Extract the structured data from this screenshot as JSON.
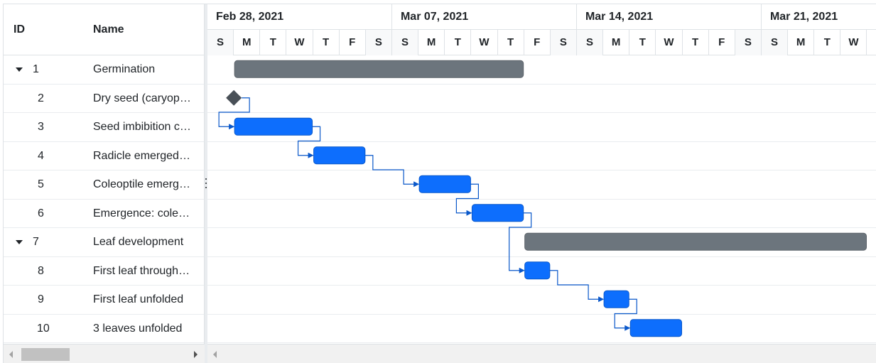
{
  "grid": {
    "columns": {
      "id": "ID",
      "name": "Name"
    },
    "rows": [
      {
        "id": "1",
        "name": "Germination",
        "parent": true
      },
      {
        "id": "2",
        "name": "Dry seed (caryopsis)",
        "parent": false
      },
      {
        "id": "3",
        "name": "Seed imbibition complete",
        "parent": false
      },
      {
        "id": "4",
        "name": "Radicle emerged from caryopsis",
        "parent": false
      },
      {
        "id": "5",
        "name": "Coleoptile emerged from caryopsis",
        "parent": false
      },
      {
        "id": "6",
        "name": "Emergence: coleoptile penetrates soil surface",
        "parent": false
      },
      {
        "id": "7",
        "name": "Leaf development",
        "parent": true
      },
      {
        "id": "8",
        "name": "First leaf through coleoptile",
        "parent": false
      },
      {
        "id": "9",
        "name": "First leaf unfolded",
        "parent": false
      },
      {
        "id": "10",
        "name": "3 leaves unfolded",
        "parent": false
      }
    ]
  },
  "timeline": {
    "weeks": [
      "Feb 28, 2021",
      "Mar 07, 2021",
      "Mar 14, 2021",
      "Mar 21, 2021"
    ],
    "day_letters": [
      "S",
      "M",
      "T",
      "W",
      "T",
      "F",
      "S"
    ]
  },
  "tasks": [
    {
      "row": 0,
      "type": "summary",
      "start_day": 1,
      "end_day": 12
    },
    {
      "row": 1,
      "type": "milestone",
      "start_day": 1,
      "end_day": 1
    },
    {
      "row": 2,
      "type": "task",
      "start_day": 1,
      "end_day": 4
    },
    {
      "row": 3,
      "type": "task",
      "start_day": 4,
      "end_day": 6
    },
    {
      "row": 4,
      "type": "task",
      "start_day": 8,
      "end_day": 10
    },
    {
      "row": 5,
      "type": "task",
      "start_day": 10,
      "end_day": 12
    },
    {
      "row": 6,
      "type": "summary",
      "start_day": 12,
      "end_day": 25
    },
    {
      "row": 7,
      "type": "task",
      "start_day": 12,
      "end_day": 13
    },
    {
      "row": 8,
      "type": "task",
      "start_day": 15,
      "end_day": 16
    },
    {
      "row": 9,
      "type": "task",
      "start_day": 16,
      "end_day": 18
    }
  ],
  "links": [
    [
      1,
      2
    ],
    [
      2,
      3
    ],
    [
      3,
      4
    ],
    [
      4,
      5
    ],
    [
      5,
      7
    ],
    [
      7,
      8
    ],
    [
      8,
      9
    ]
  ],
  "colors": {
    "task_bar": "#0d6efd",
    "summary_bar": "#6c757d",
    "milestone": "#495057",
    "connector": "#0a58ca"
  }
}
